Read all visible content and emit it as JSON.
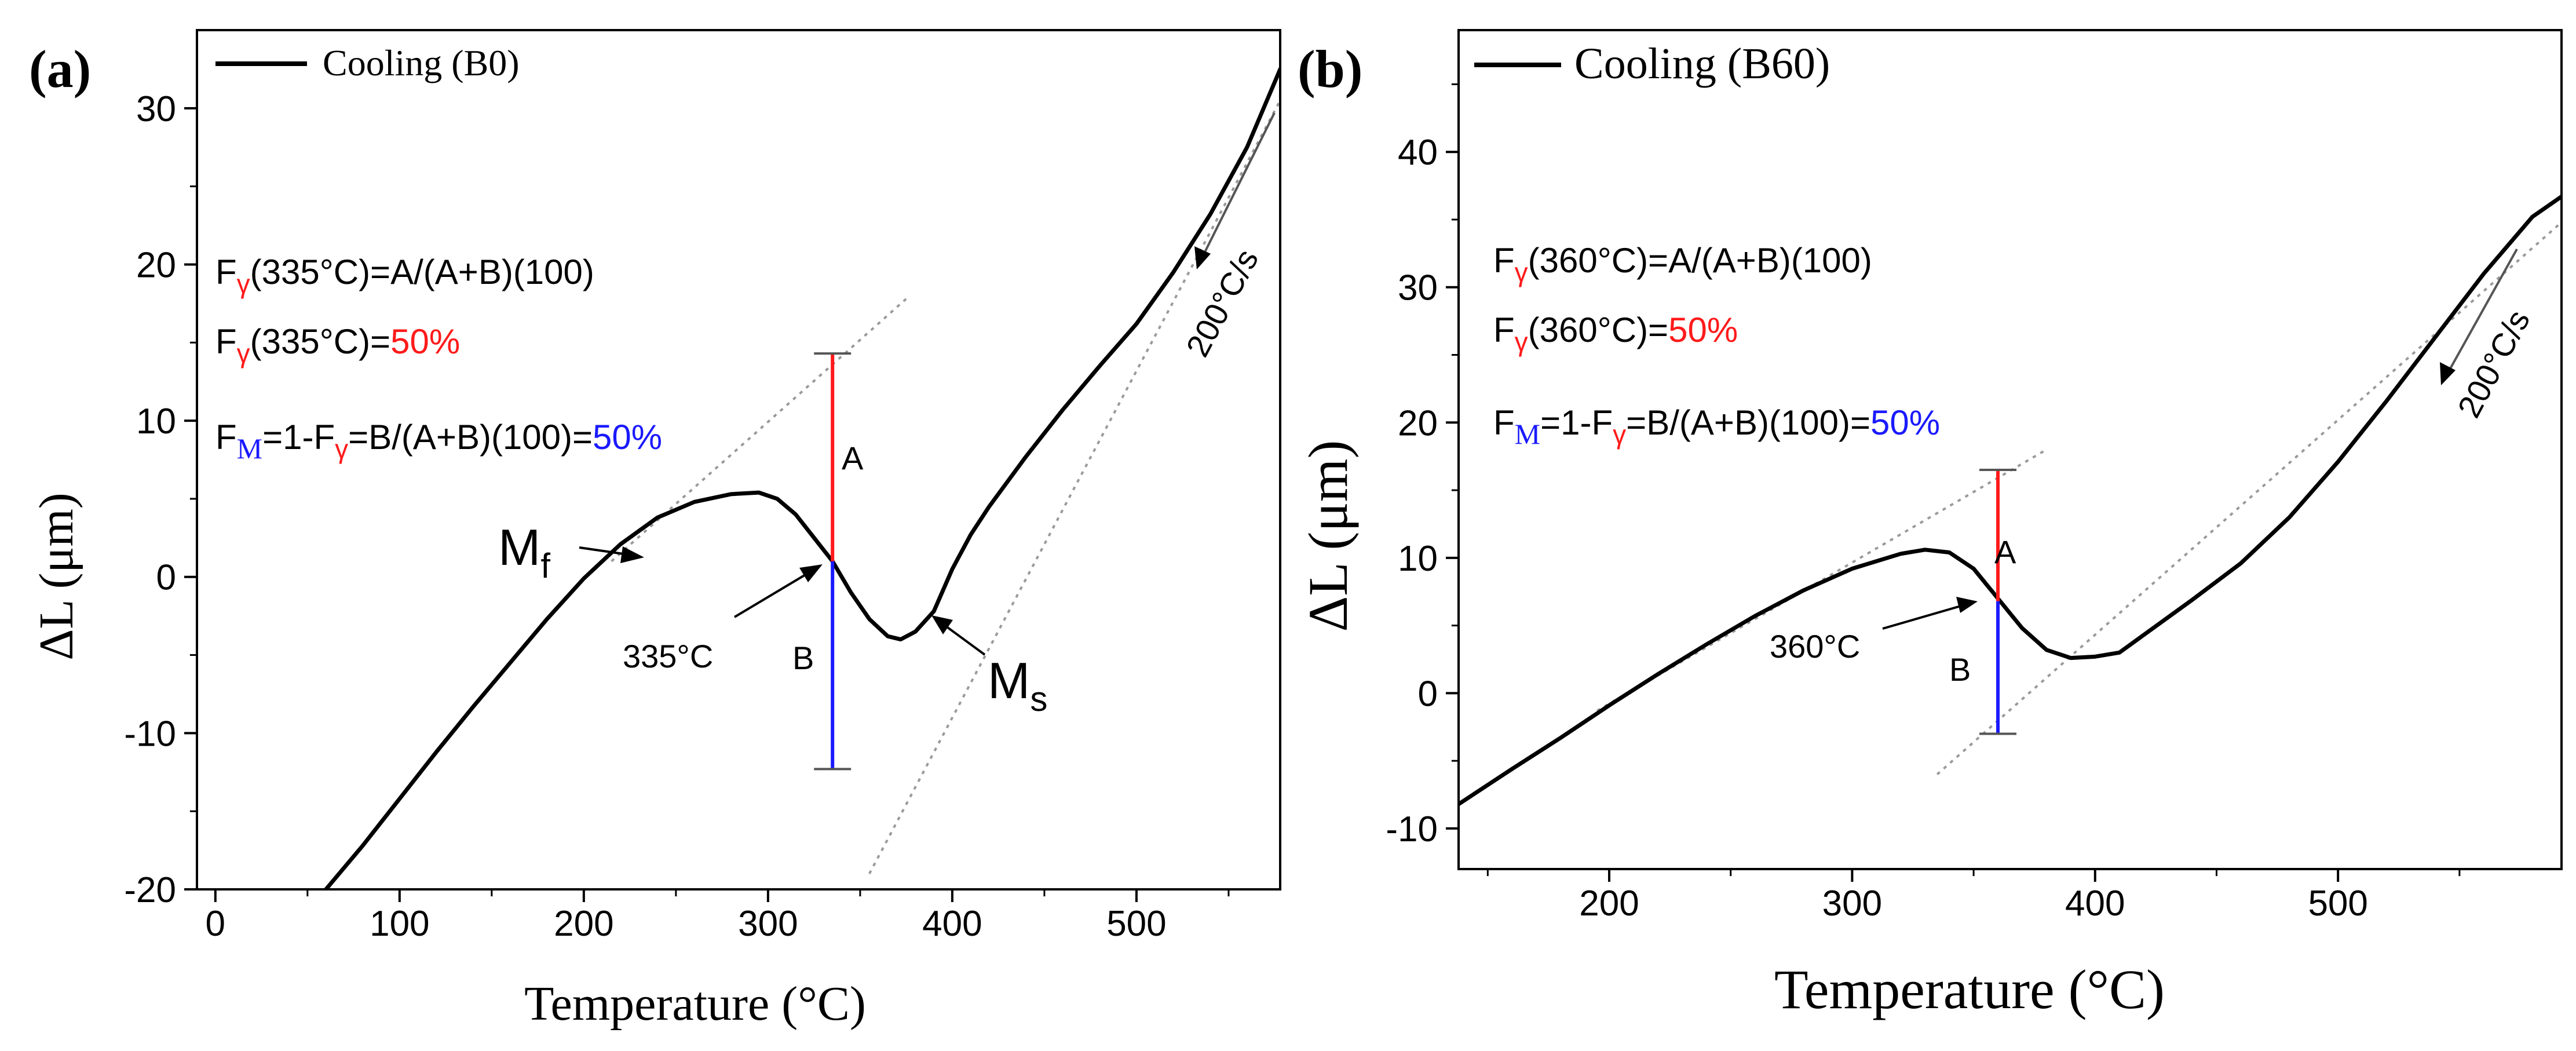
{
  "colors": {
    "curve": "#000000",
    "tangent": "#9a9a9a",
    "segment_a": "#ff1a1a",
    "segment_b": "#1a1aff",
    "axis": "#000000",
    "callout": "#000000"
  },
  "panels": {
    "a": {
      "label": "(a)",
      "xlabel": "Temperature (°C)",
      "ylabel": "ΔL (μm)",
      "legend": "Cooling (B0)",
      "rate": "200°C/s",
      "formula_line1": {
        "F": "F",
        "sub": "γ",
        "rest": "(335°C)=A/(A+B)(100)"
      },
      "formula_line2": {
        "F": "F",
        "sub": "γ",
        "rest": "(335°C)=",
        "value": "50%"
      },
      "formula_line3": {
        "F": "F",
        "sub": "M",
        "mid": "=1-F",
        "sub2": "γ",
        "rest": "=B/(A+B)(100)=",
        "value": "50%"
      },
      "label_a": "A",
      "label_b": "B",
      "temp_label": "335°C",
      "mf": {
        "main": "M",
        "sub": "f"
      },
      "ms": {
        "main": "M",
        "sub": "s"
      }
    },
    "b": {
      "label": "(b)",
      "xlabel": "Temperature (°C)",
      "ylabel": "ΔL (μm)",
      "legend": "Cooling (B60)",
      "rate": "200°C/s",
      "formula_line1": {
        "F": "F",
        "sub": "γ",
        "rest": "(360°C)=A/(A+B)(100)"
      },
      "formula_line2": {
        "F": "F",
        "sub": "γ",
        "rest": "(360°C)=",
        "value": "50%"
      },
      "formula_line3": {
        "F": "F",
        "sub": "M",
        "mid": "=1-F",
        "sub2": "γ",
        "rest": "=B/(A+B)(100)=",
        "value": "50%"
      },
      "label_a": "A",
      "label_b": "B",
      "temp_label": "360°C"
    }
  },
  "chart_data": [
    {
      "type": "line",
      "panel": "a",
      "xlim": [
        -10,
        578
      ],
      "ylim": [
        -20,
        35
      ],
      "xticks": [
        0,
        100,
        200,
        300,
        400,
        500
      ],
      "yticks": [
        -20,
        -10,
        0,
        10,
        20,
        30
      ],
      "x_tick_labels": [
        "0",
        "100",
        "200",
        "300",
        "400",
        "500"
      ],
      "y_tick_labels": [
        "-20",
        "-10",
        "0",
        "10",
        "20",
        "30"
      ],
      "series": [
        {
          "name": "Cooling (B0)",
          "x": [
            60,
            80,
            100,
            120,
            140,
            160,
            180,
            200,
            220,
            240,
            260,
            280,
            295,
            305,
            315,
            325,
            335,
            345,
            355,
            365,
            372,
            380,
            390,
            400,
            410,
            420,
            440,
            460,
            480,
            500,
            520,
            540,
            560,
            578
          ],
          "y": [
            -20,
            -17.2,
            -14.2,
            -11.2,
            -8.3,
            -5.5,
            -2.7,
            -0.1,
            2.1,
            3.8,
            4.8,
            5.3,
            5.4,
            5.0,
            4.0,
            2.5,
            1.0,
            -1.0,
            -2.7,
            -3.8,
            -4.0,
            -3.5,
            -2.2,
            0.5,
            2.7,
            4.5,
            7.7,
            10.7,
            13.5,
            16.2,
            19.5,
            23.2,
            27.5,
            32.5
          ]
        }
      ],
      "tangent_lines": [
        {
          "x": [
            215,
            375
          ],
          "y": [
            1.0,
            17.8
          ]
        },
        {
          "x": [
            355,
            578
          ],
          "y": [
            -19.0,
            30.5
          ]
        }
      ],
      "segment_A": {
        "x": 335,
        "y_from": 1.0,
        "y_to": 14.3
      },
      "segment_B": {
        "x": 335,
        "y_from": 1.0,
        "y_to": -12.3
      },
      "annotations": [
        "335°C",
        "Mf",
        "Ms",
        "A",
        "B",
        "200°C/s"
      ]
    },
    {
      "type": "line",
      "panel": "b",
      "xlim": [
        138,
        592
      ],
      "ylim": [
        -13,
        49
      ],
      "xticks": [
        200,
        300,
        400,
        500
      ],
      "yticks": [
        -10,
        0,
        10,
        20,
        30,
        40
      ],
      "x_tick_labels": [
        "200",
        "300",
        "400",
        "500"
      ],
      "y_tick_labels": [
        "-10",
        "0",
        "10",
        "20",
        "30",
        "40"
      ],
      "series": [
        {
          "name": "Cooling (B60)",
          "x": [
            138,
            160,
            180,
            200,
            220,
            240,
            260,
            280,
            300,
            320,
            330,
            340,
            350,
            360,
            370,
            380,
            390,
            400,
            410,
            420,
            440,
            460,
            480,
            500,
            520,
            540,
            560,
            580,
            592
          ],
          "y": [
            -8.2,
            -5.6,
            -3.3,
            -0.9,
            1.4,
            3.6,
            5.7,
            7.6,
            9.2,
            10.3,
            10.6,
            10.4,
            9.2,
            7.0,
            4.8,
            3.2,
            2.6,
            2.7,
            3.0,
            4.3,
            6.9,
            9.6,
            13.0,
            17.1,
            21.6,
            26.3,
            31.0,
            35.2,
            36.7
          ]
        }
      ],
      "tangent_lines": [
        {
          "x": [
            195,
            380
          ],
          "y": [
            -1.3,
            18.0
          ]
        },
        {
          "x": [
            335,
            592
          ],
          "y": [
            -6.0,
            34.8
          ]
        }
      ],
      "segment_A": {
        "x": 360,
        "y_from": 6.8,
        "y_to": 16.5
      },
      "segment_B": {
        "x": 360,
        "y_from": 6.8,
        "y_to": -3.0
      },
      "annotations": [
        "360°C",
        "A",
        "B",
        "200°C/s"
      ]
    }
  ]
}
